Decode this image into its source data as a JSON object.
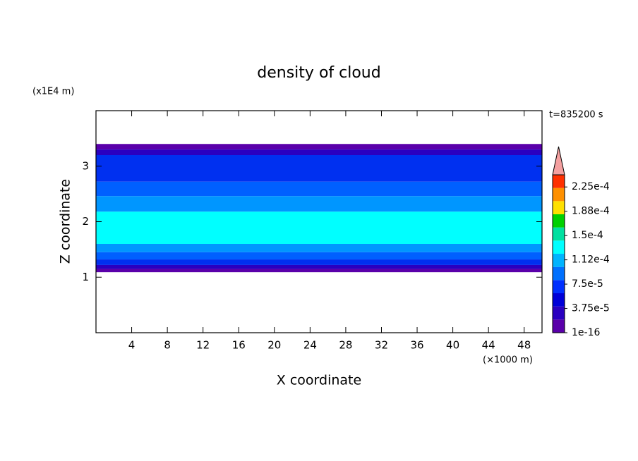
{
  "chart_data": {
    "type": "contour",
    "title": "density of cloud",
    "xlabel": "X coordinate",
    "ylabel": "Z coordinate",
    "xunit": "(×1000 m)",
    "yunit": "(x1E4 m)",
    "annotation": "t=835200 s",
    "xlim": [
      0,
      50
    ],
    "xticks": [
      4,
      8,
      12,
      16,
      20,
      24,
      28,
      32,
      36,
      40,
      44,
      48
    ],
    "ylim": [
      0,
      4
    ],
    "yticks": [
      1,
      2,
      3
    ],
    "layers": [
      {
        "zlim": [
          3.3,
          3.4
        ],
        "color": "#5a00aa"
      },
      {
        "zlim": [
          3.2,
          3.3
        ],
        "color": "#2a00c0"
      },
      {
        "zlim": [
          2.72,
          3.2
        ],
        "color": "#0030f0"
      },
      {
        "zlim": [
          2.46,
          2.72
        ],
        "color": "#0060ff"
      },
      {
        "zlim": [
          2.18,
          2.46
        ],
        "color": "#0096ff"
      },
      {
        "zlim": [
          1.6,
          2.18
        ],
        "color": "#00ffff"
      },
      {
        "zlim": [
          1.45,
          1.6
        ],
        "color": "#0096ff"
      },
      {
        "zlim": [
          1.32,
          1.45
        ],
        "color": "#0060ff"
      },
      {
        "zlim": [
          1.22,
          1.32
        ],
        "color": "#0030f0"
      },
      {
        "zlim": [
          1.15,
          1.22
        ],
        "color": "#2a00c0"
      },
      {
        "zlim": [
          1.09,
          1.15
        ],
        "color": "#5a00aa"
      }
    ],
    "colorbar": {
      "lim": [
        1e-16,
        0.00024375
      ],
      "colors": [
        "#5a00aa",
        "#2a00c0",
        "#0000d8",
        "#0030ff",
        "#0070ff",
        "#00b4ff",
        "#00ffff",
        "#00e0a0",
        "#00d000",
        "#ffe000",
        "#ff9000",
        "#ff3000"
      ],
      "extend_color": "#f4a0a0",
      "ticks": [
        {
          "value": 1e-16,
          "label": "1e-16"
        },
        {
          "value": 3.75e-05,
          "label": "3.75e-5"
        },
        {
          "value": 7.5e-05,
          "label": "7.5e-5"
        },
        {
          "value": 0.0001125,
          "label": "1.12e-4"
        },
        {
          "value": 0.00015,
          "label": "1.5e-4"
        },
        {
          "value": 0.0001875,
          "label": "1.88e-4"
        },
        {
          "value": 0.000225,
          "label": "2.25e-4"
        }
      ]
    }
  }
}
